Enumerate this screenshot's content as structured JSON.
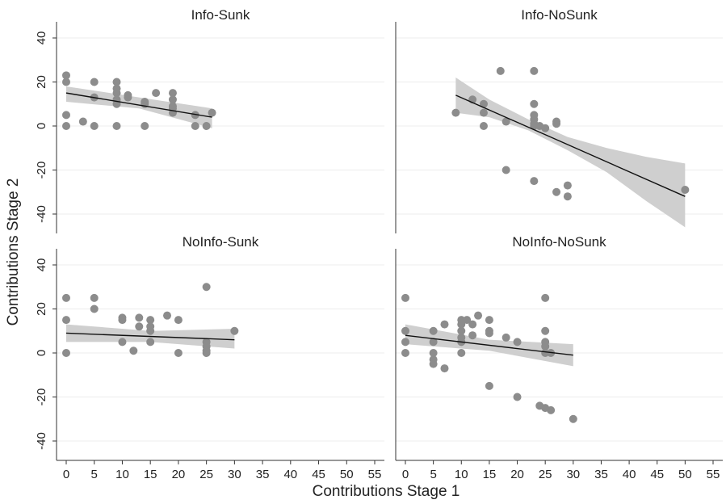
{
  "chart_data": {
    "type": "scatter",
    "layout": "2x2 facet grid",
    "xlabel": "Contributions Stage 1",
    "ylabel": "Contributions Stage 2",
    "xlim": [
      0,
      55
    ],
    "ylim": [
      -50,
      40
    ],
    "x_ticks": [
      0,
      5,
      10,
      15,
      20,
      25,
      30,
      35,
      40,
      45,
      50,
      55
    ],
    "y_ticks": [
      40,
      20,
      0,
      -20,
      -40
    ],
    "grid": "horizontal",
    "colors": {
      "points": "#8c8c8c",
      "fit_line": "#111111",
      "confidence_band": "#cfcfcf",
      "grid": "#ececec"
    },
    "panels": [
      {
        "title": "Info-Sunk",
        "points": [
          [
            0,
            23
          ],
          [
            0,
            20
          ],
          [
            0,
            5
          ],
          [
            0,
            0
          ],
          [
            3,
            2
          ],
          [
            5,
            20
          ],
          [
            5,
            13
          ],
          [
            5,
            0
          ],
          [
            9,
            20
          ],
          [
            9,
            17
          ],
          [
            9,
            15
          ],
          [
            9,
            12
          ],
          [
            9,
            10
          ],
          [
            9,
            0
          ],
          [
            11,
            14
          ],
          [
            11,
            13
          ],
          [
            14,
            11
          ],
          [
            14,
            10
          ],
          [
            14,
            0
          ],
          [
            16,
            15
          ],
          [
            19,
            15
          ],
          [
            19,
            12
          ],
          [
            19,
            9
          ],
          [
            19,
            8
          ],
          [
            19,
            6
          ],
          [
            23,
            5
          ],
          [
            23,
            0
          ],
          [
            25,
            0
          ],
          [
            26,
            6
          ]
        ],
        "fit": {
          "x": [
            0,
            26
          ],
          "y": [
            15,
            4
          ]
        },
        "band": {
          "x": [
            0,
            13,
            26
          ],
          "upper": [
            18,
            13,
            8
          ],
          "lower": [
            11,
            8,
            -1
          ]
        }
      },
      {
        "title": "Info-NoSunk",
        "points": [
          [
            9,
            6
          ],
          [
            12,
            12
          ],
          [
            14,
            10
          ],
          [
            14,
            6
          ],
          [
            14,
            0
          ],
          [
            17,
            25
          ],
          [
            18,
            2
          ],
          [
            18,
            -20
          ],
          [
            23,
            25
          ],
          [
            23,
            10
          ],
          [
            23,
            5
          ],
          [
            23,
            3
          ],
          [
            23,
            1
          ],
          [
            23,
            0
          ],
          [
            24,
            0
          ],
          [
            25,
            -1
          ],
          [
            23,
            -25
          ],
          [
            27,
            2
          ],
          [
            27,
            1
          ],
          [
            27,
            -30
          ],
          [
            29,
            -27
          ],
          [
            29,
            -32
          ],
          [
            50,
            -29
          ]
        ],
        "fit": {
          "x": [
            9,
            50
          ],
          "y": [
            14,
            -32
          ]
        },
        "band": {
          "x": [
            9,
            15,
            22,
            29,
            36,
            43,
            50
          ],
          "upper": [
            22,
            12,
            3,
            -5,
            -10,
            -14,
            -17
          ],
          "lower": [
            6,
            4,
            -2,
            -11,
            -21,
            -34,
            -46
          ]
        }
      },
      {
        "title": "NoInfo-Sunk",
        "points": [
          [
            0,
            25
          ],
          [
            0,
            15
          ],
          [
            0,
            0
          ],
          [
            5,
            25
          ],
          [
            5,
            20
          ],
          [
            10,
            16
          ],
          [
            10,
            15
          ],
          [
            10,
            5
          ],
          [
            12,
            1
          ],
          [
            13,
            16
          ],
          [
            13,
            12
          ],
          [
            15,
            15
          ],
          [
            15,
            12
          ],
          [
            15,
            10
          ],
          [
            15,
            5
          ],
          [
            18,
            17
          ],
          [
            20,
            15
          ],
          [
            20,
            0
          ],
          [
            25,
            30
          ],
          [
            25,
            5
          ],
          [
            25,
            3
          ],
          [
            25,
            1
          ],
          [
            25,
            0
          ],
          [
            30,
            10
          ]
        ],
        "fit": {
          "x": [
            0,
            30
          ],
          "y": [
            9,
            6
          ]
        },
        "band": {
          "x": [
            0,
            15,
            30
          ],
          "upper": [
            13,
            10,
            11
          ],
          "lower": [
            5,
            5,
            2
          ]
        }
      },
      {
        "title": "NoInfo-NoSunk",
        "points": [
          [
            0,
            25
          ],
          [
            0,
            10
          ],
          [
            0,
            5
          ],
          [
            0,
            0
          ],
          [
            5,
            10
          ],
          [
            5,
            5
          ],
          [
            5,
            0
          ],
          [
            5,
            -3
          ],
          [
            5,
            -5
          ],
          [
            7,
            13
          ],
          [
            7,
            -7
          ],
          [
            10,
            15
          ],
          [
            10,
            13
          ],
          [
            10,
            10
          ],
          [
            10,
            7
          ],
          [
            10,
            5
          ],
          [
            10,
            0
          ],
          [
            11,
            15
          ],
          [
            12,
            13
          ],
          [
            12,
            8
          ],
          [
            13,
            17
          ],
          [
            15,
            15
          ],
          [
            15,
            10
          ],
          [
            15,
            9
          ],
          [
            15,
            -15
          ],
          [
            18,
            7
          ],
          [
            20,
            5
          ],
          [
            20,
            -20
          ],
          [
            24,
            -24
          ],
          [
            25,
            25
          ],
          [
            25,
            10
          ],
          [
            25,
            5
          ],
          [
            25,
            3
          ],
          [
            25,
            0
          ],
          [
            25,
            -25
          ],
          [
            26,
            -26
          ],
          [
            26,
            0
          ],
          [
            30,
            -30
          ]
        ],
        "fit": {
          "x": [
            0,
            30
          ],
          "y": [
            8,
            -1
          ]
        },
        "band": {
          "x": [
            0,
            15,
            30
          ],
          "upper": [
            13,
            6,
            4
          ],
          "lower": [
            4,
            1,
            -6
          ]
        }
      }
    ]
  }
}
